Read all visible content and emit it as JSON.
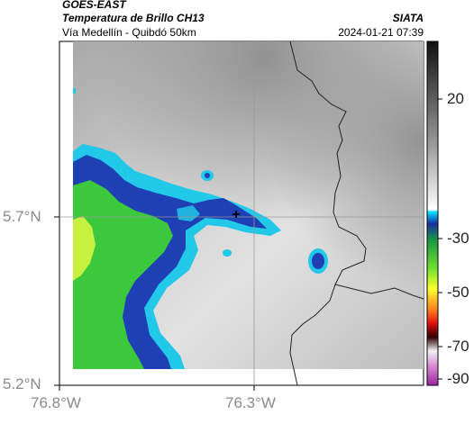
{
  "header": {
    "satellite": "GOES-EAST",
    "product": "Temperatura de Brillo CH13",
    "region": "Vía Medellín - Quibdó 50km",
    "org": "SIATA",
    "datetime": "2024-01-21 07:39"
  },
  "axes": {
    "y_ticks": [
      {
        "label": "5.7°N",
        "value": 5.7
      },
      {
        "label": "5.2°N",
        "value": 5.2
      }
    ],
    "x_ticks": [
      {
        "label": "76.8°W",
        "value": -76.8
      },
      {
        "label": "76.3°W",
        "value": -76.3
      }
    ]
  },
  "colorbar": {
    "ticks": [
      "20",
      "-30",
      "-50",
      "-70",
      "-90"
    ],
    "tick_values": [
      20,
      -30,
      -50,
      -70,
      -90
    ]
  },
  "colors": {
    "cold_cloud_blue": "#1f3fb5",
    "cyan": "#22c8e8",
    "green": "#3cc83c",
    "yellow_green": "#c8f040",
    "boundary": "#222222"
  }
}
